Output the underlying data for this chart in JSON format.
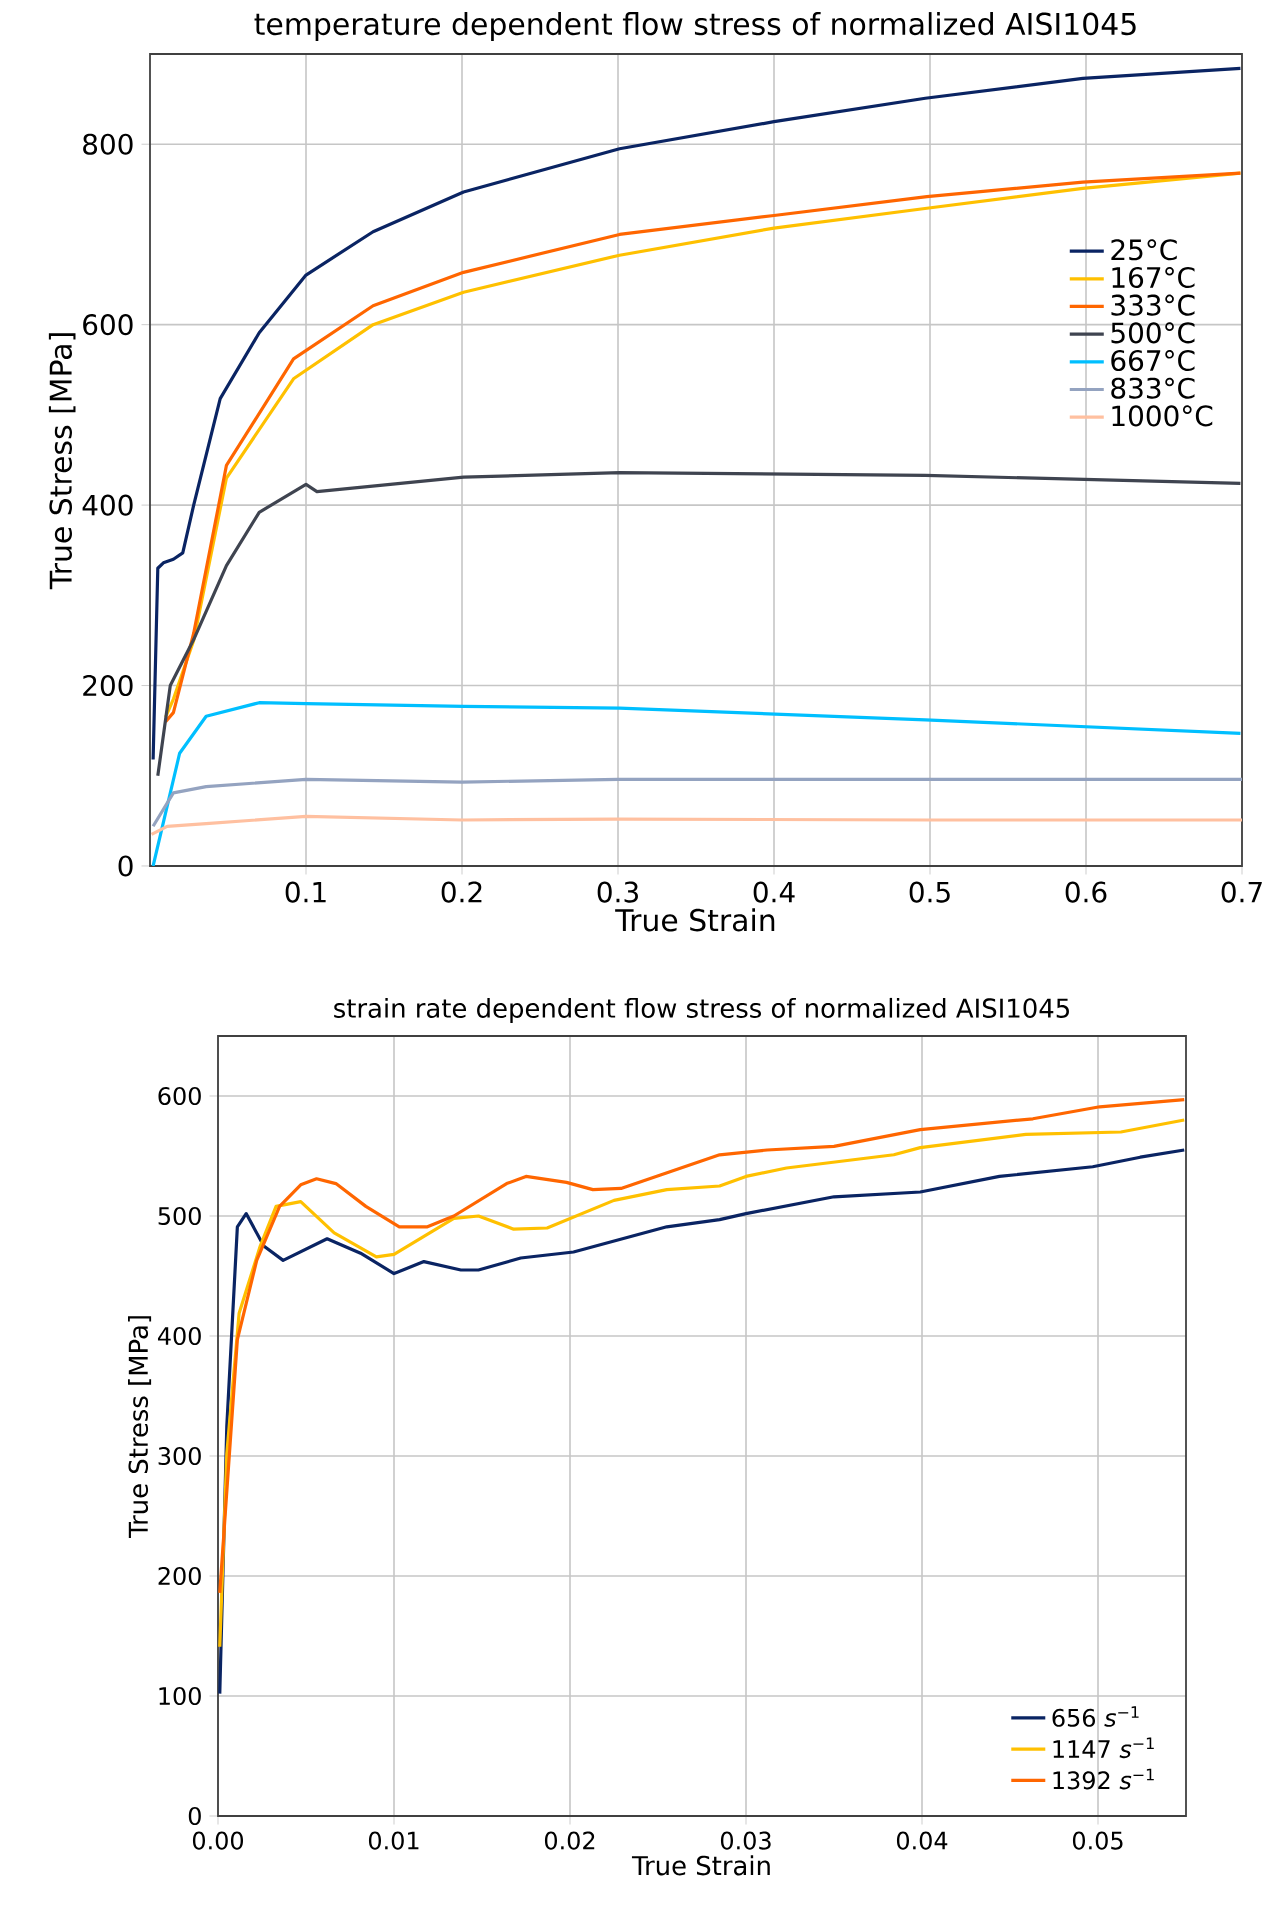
{
  "chart_data": [
    {
      "type": "line",
      "title": "temperature dependent flow stress of normalized AISI1045",
      "xlabel": "True Strain",
      "ylabel": "True Stress [MPa]",
      "xlim": [
        0,
        0.7
      ],
      "ylim": [
        0,
        900
      ],
      "xticks": [
        0.1,
        0.2,
        0.3,
        0.4,
        0.5,
        0.6,
        0.7
      ],
      "yticks": [
        0,
        200,
        400,
        600,
        800
      ],
      "grid": true,
      "legend": "right",
      "line_style": "solid",
      "marker": "none",
      "series": [
        {
          "name": "25°C",
          "color": "#0a2463",
          "x": [
            0.002,
            0.005,
            0.0086,
            0.015,
            0.021,
            0.028,
            0.045,
            0.07,
            0.1,
            0.143,
            0.201,
            0.301,
            0.4,
            0.497,
            0.598,
            0.699
          ],
          "values": [
            118,
            330,
            336,
            340,
            347,
            400,
            518,
            591,
            655,
            703,
            747,
            795,
            825,
            851,
            873,
            884
          ]
        },
        {
          "name": "167°C",
          "color": "#ffc000",
          "x": [
            0.01,
            0.015,
            0.028,
            0.049,
            0.092,
            0.143,
            0.201,
            0.301,
            0.4,
            0.498,
            0.598,
            0.699
          ],
          "values": [
            165,
            185,
            250,
            430,
            540,
            600,
            636,
            677,
            707,
            729,
            751,
            768
          ]
        },
        {
          "name": "333°C",
          "color": "#ff6600",
          "x": [
            0.01,
            0.015,
            0.028,
            0.049,
            0.092,
            0.143,
            0.201,
            0.301,
            0.4,
            0.498,
            0.598,
            0.699
          ],
          "values": [
            160,
            170,
            258,
            444,
            562,
            621,
            658,
            700,
            721,
            742,
            758,
            768
          ]
        },
        {
          "name": "500°C",
          "color": "#3f4450",
          "x": [
            0.005,
            0.013,
            0.028,
            0.049,
            0.07,
            0.1,
            0.107,
            0.201,
            0.301,
            0.497,
            0.699
          ],
          "values": [
            100,
            200,
            251,
            333,
            392,
            423,
            415,
            431,
            436,
            433,
            424
          ]
        },
        {
          "name": "667°C",
          "color": "#00bfff",
          "x": [
            0.002,
            0.019,
            0.036,
            0.07,
            0.1,
            0.201,
            0.301,
            0.497,
            0.699
          ],
          "values": [
            0,
            125,
            166,
            181,
            180,
            177,
            175,
            162,
            147
          ]
        },
        {
          "name": "833°C",
          "color": "#94a3c0",
          "x": [
            0.002,
            0.015,
            0.036,
            0.1,
            0.2,
            0.3,
            0.5,
            0.7
          ],
          "values": [
            44,
            81,
            88,
            96,
            93,
            96,
            96,
            96
          ]
        },
        {
          "name": "1000°C",
          "color": "#ffc0a0",
          "x": [
            0.001,
            0.011,
            0.036,
            0.1,
            0.2,
            0.3,
            0.5,
            0.7
          ],
          "values": [
            35,
            44,
            47,
            55,
            51,
            52,
            51,
            51
          ]
        }
      ]
    },
    {
      "type": "line",
      "title": "strain rate dependent flow stress of normalized AISI1045",
      "xlabel": "True Strain",
      "ylabel": "True Stress [MPa]",
      "xlim": [
        0,
        0.055
      ],
      "ylim": [
        0,
        650
      ],
      "xticks": [
        {
          "value": 0,
          "label": "0.00"
        },
        {
          "value": 0.01,
          "label": "0.01"
        },
        {
          "value": 0.02,
          "label": "0.02"
        },
        {
          "value": 0.03,
          "label": "0.03"
        },
        {
          "value": 0.04,
          "label": "0.04"
        },
        {
          "value": 0.05,
          "label": "0.05"
        }
      ],
      "yticks": [
        0,
        100,
        200,
        300,
        400,
        500,
        600
      ],
      "grid": true,
      "legend": "bottom right",
      "line_style": "solid",
      "marker": "none",
      "series": [
        {
          "name": "656 *s*$^{−1}$",
          "color": "#0a2463",
          "x": [
            0.0001,
            0.0005,
            0.0011,
            0.0016,
            0.0026,
            0.0037,
            0.0062,
            0.0081,
            0.01,
            0.0117,
            0.0138,
            0.0148,
            0.0172,
            0.0202,
            0.0255,
            0.0285,
            0.03,
            0.035,
            0.0399,
            0.0444,
            0.0497,
            0.0524,
            0.0549
          ],
          "values": [
            102,
            325,
            491,
            502,
            475,
            463,
            481,
            469,
            452,
            462,
            455,
            455,
            465,
            470,
            491,
            497,
            502,
            516,
            520,
            533,
            541,
            549,
            555
          ]
        },
        {
          "name": "1147 *s*$^{−1}$",
          "color": "#ffc000",
          "x": [
            0.0001,
            0.0005,
            0.0012,
            0.0024,
            0.0033,
            0.0047,
            0.0066,
            0.009,
            0.01,
            0.0134,
            0.0148,
            0.0168,
            0.0187,
            0.0225,
            0.0255,
            0.0285,
            0.03,
            0.0323,
            0.0384,
            0.0399,
            0.0459,
            0.0513,
            0.0549
          ],
          "values": [
            141,
            302,
            419,
            475,
            508,
            512,
            486,
            466,
            468,
            498,
            500,
            489,
            490,
            513,
            522,
            525,
            533,
            540,
            551,
            557,
            568,
            570,
            580
          ]
        },
        {
          "name": "1392 *s*$^{−1}$",
          "color": "#ff6600",
          "x": [
            0.0001,
            0.0011,
            0.0022,
            0.0035,
            0.0047,
            0.0056,
            0.0067,
            0.0084,
            0.0103,
            0.0119,
            0.0134,
            0.0164,
            0.0175,
            0.0198,
            0.0213,
            0.0229,
            0.0251,
            0.0285,
            0.0312,
            0.035,
            0.0399,
            0.0463,
            0.0501,
            0.0549
          ],
          "values": [
            186,
            397,
            463,
            508,
            526,
            531,
            527,
            508,
            491,
            491,
            500,
            527,
            533,
            528,
            522,
            523,
            534,
            551,
            555,
            558,
            572,
            581,
            591,
            597
          ]
        }
      ]
    }
  ]
}
